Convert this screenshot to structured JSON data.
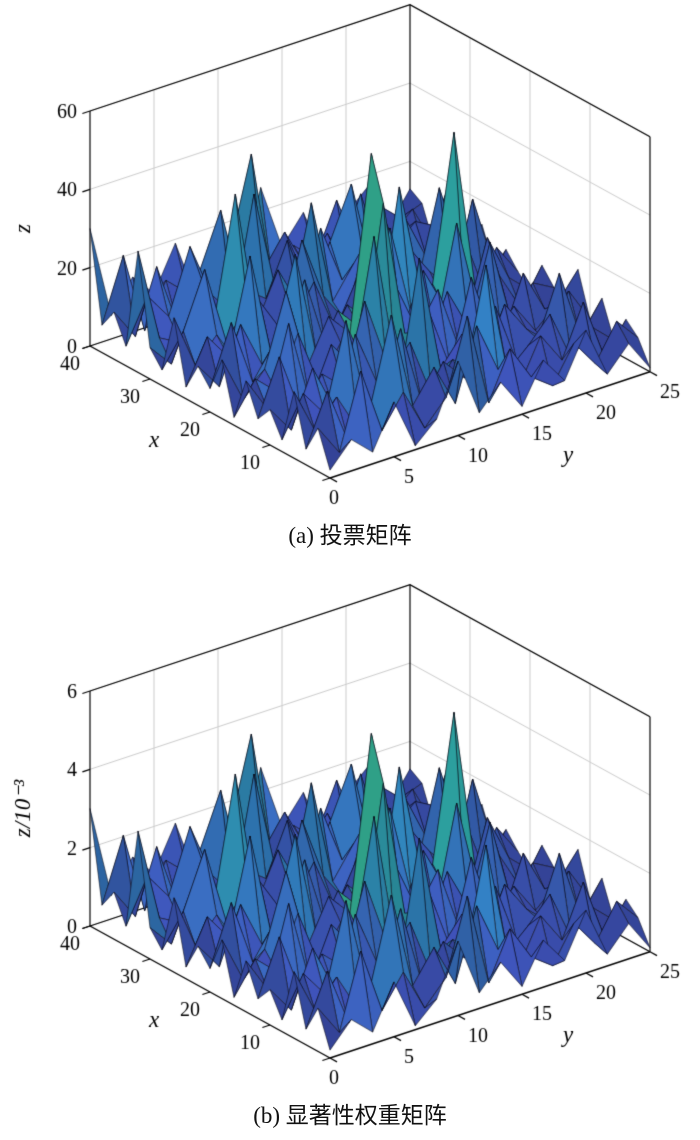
{
  "figure": {
    "background": "#ffffff",
    "axis_line_color": "#000000",
    "wall_grid_color": "#cccccc",
    "mesh_edge_color": "#0a0a14"
  },
  "chart_data": [
    {
      "type": "surface",
      "title": "(a) 投票矩阵",
      "xlabel": "x",
      "ylabel": "y",
      "zlabel": "z",
      "x_range": [
        0,
        40
      ],
      "y_range": [
        0,
        25
      ],
      "z_range": [
        0,
        60
      ],
      "x_ticks": [
        0,
        10,
        20,
        30,
        40
      ],
      "y_ticks": [
        0,
        5,
        10,
        15,
        20,
        25
      ],
      "z_ticks": [
        0,
        20,
        40,
        60
      ],
      "grid_size": {
        "x_points": 21,
        "y_points": 16
      },
      "z_display_multiplier": 1,
      "colormap": [
        "#3a3fa0",
        "#3b55b4",
        "#2f7eb8",
        "#2da6a0",
        "#3ebe82"
      ],
      "legend": "none",
      "grid": "wall gridlines at z ticks",
      "z_values": [
        [
          2,
          8,
          3,
          14,
          1,
          6,
          19,
          4,
          10,
          2,
          12,
          5,
          16,
          3,
          9,
          1
        ],
        [
          11,
          3,
          22,
          5,
          13,
          2,
          8,
          27,
          3,
          15,
          6,
          2,
          11,
          4,
          13,
          7
        ],
        [
          4,
          17,
          2,
          9,
          31,
          6,
          14,
          3,
          21,
          8,
          2,
          13,
          5,
          18,
          2,
          10
        ],
        [
          17,
          5,
          12,
          2,
          7,
          24,
          3,
          12,
          6,
          33,
          4,
          9,
          15,
          2,
          8,
          3
        ],
        [
          3,
          13,
          6,
          28,
          4,
          11,
          17,
          2,
          9,
          5,
          19,
          3,
          7,
          22,
          4,
          12
        ],
        [
          9,
          2,
          16,
          4,
          21,
          7,
          2,
          35,
          5,
          12,
          3,
          16,
          8,
          3,
          14,
          5
        ],
        [
          5,
          19,
          3,
          11,
          6,
          26,
          9,
          4,
          18,
          2,
          23,
          6,
          12,
          4,
          9,
          16
        ],
        [
          13,
          4,
          24,
          2,
          15,
          8,
          39,
          5,
          11,
          20,
          3,
          14,
          2,
          17,
          6,
          2
        ],
        [
          2,
          10,
          5,
          18,
          3,
          12,
          6,
          44,
          9,
          3,
          16,
          5,
          25,
          3,
          11,
          8
        ],
        [
          15,
          3,
          9,
          27,
          6,
          17,
          11,
          55,
          21,
          8,
          4,
          30,
          6,
          13,
          3,
          12
        ],
        [
          6,
          21,
          4,
          12,
          33,
          5,
          15,
          9,
          38,
          4,
          18,
          7,
          2,
          21,
          9,
          4
        ],
        [
          10,
          3,
          17,
          5,
          9,
          23,
          4,
          13,
          7,
          29,
          5,
          11,
          48,
          6,
          15,
          7
        ],
        [
          3,
          14,
          7,
          31,
          4,
          10,
          19,
          5,
          16,
          2,
          36,
          8,
          4,
          18,
          2,
          11
        ],
        [
          19,
          5,
          11,
          2,
          16,
          7,
          28,
          12,
          4,
          22,
          6,
          17,
          9,
          3,
          24,
          5
        ],
        [
          4,
          12,
          26,
          6,
          13,
          3,
          9,
          34,
          7,
          15,
          3,
          12,
          5,
          27,
          8,
          14
        ],
        [
          8,
          2,
          15,
          9,
          40,
          5,
          17,
          6,
          24,
          9,
          13,
          4,
          19,
          7,
          3,
          10
        ],
        [
          31,
          7,
          4,
          18,
          3,
          12,
          8,
          21,
          5,
          17,
          30,
          6,
          10,
          15,
          12,
          6
        ],
        [
          5,
          16,
          9,
          25,
          11,
          4,
          33,
          7,
          13,
          2,
          9,
          24,
          5,
          11,
          4,
          17
        ],
        [
          12,
          4,
          20,
          3,
          15,
          29,
          6,
          10,
          18,
          7,
          14,
          3,
          22,
          8,
          13,
          2
        ],
        [
          7,
          23,
          2,
          13,
          8,
          4,
          16,
          38,
          3,
          11,
          6,
          19,
          4,
          14,
          9,
          11
        ],
        [
          30,
          6,
          14,
          8,
          19,
          3,
          11,
          5,
          26,
          9,
          16,
          2,
          12,
          17,
          5,
          13
        ]
      ]
    },
    {
      "type": "surface",
      "title": "(b) 显著性权重矩阵",
      "xlabel": "x",
      "ylabel": "y",
      "zlabel": "z/10⁻³",
      "x_range": [
        0,
        40
      ],
      "y_range": [
        0,
        25
      ],
      "z_range": [
        0,
        6
      ],
      "x_ticks": [
        0,
        10,
        20,
        30,
        40
      ],
      "y_ticks": [
        0,
        5,
        10,
        15,
        20,
        25
      ],
      "z_ticks": [
        0,
        2,
        4,
        6
      ],
      "grid_size": {
        "x_points": 21,
        "y_points": 16
      },
      "z_display_multiplier": 0.1,
      "colormap": [
        "#3a3fa0",
        "#3b55b4",
        "#2f7eb8",
        "#2da6a0",
        "#3ebe82"
      ],
      "legend": "none",
      "grid": "wall gridlines at z ticks",
      "z_values_note": "same surface shape as chart (a): values are chart (a) grid × 10⁻⁴, plotted in units of 10⁻³ (display multiplier 0.1 of shared grid)"
    }
  ]
}
